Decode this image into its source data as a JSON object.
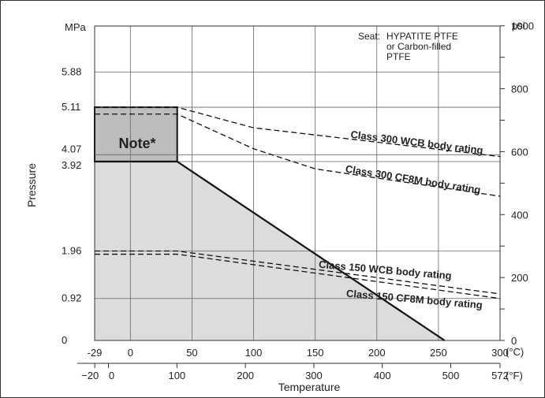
{
  "chart_data": {
    "type": "line",
    "title": "",
    "xlabel": "Temperature",
    "ylabel": "Pressure",
    "y_unit_left": "MPa",
    "y_unit_right": "psi",
    "x_unit_bottom_1": "(°C)",
    "x_unit_bottom_2": "(°F)",
    "x_range_c": [
      -29,
      300
    ],
    "y_range_mpa": [
      0,
      6.89
    ],
    "x_ticks_c": [
      "-29",
      "0",
      "50",
      "100",
      "150",
      "200",
      "250",
      "300"
    ],
    "x_ticks_f": [
      "−20",
      "0",
      "100",
      "200",
      "300",
      "400",
      "500",
      "572"
    ],
    "y_ticks_mpa": [
      "0",
      "0.92",
      "1.96",
      "3.92",
      "4.07",
      "5.11",
      "5.88"
    ],
    "y_ticks_psi": [
      "0",
      "200",
      "400",
      "600",
      "800",
      "1000"
    ],
    "grid": true,
    "seat_label": "Seat:",
    "seat_text": [
      "HYPATITE PTFE",
      "or Carbon-filled",
      "PTFE"
    ],
    "note_label": "Note*",
    "series": [
      {
        "name": "Class 300 WCB body rating",
        "style": "dashed",
        "x": [
          -29,
          38,
          100,
          300
        ],
        "y": [
          5.11,
          5.11,
          4.66,
          4.03
        ]
      },
      {
        "name": "Class 300 CF8M body rating",
        "style": "dashed",
        "x": [
          -29,
          38,
          100,
          150,
          300
        ],
        "y": [
          4.96,
          4.96,
          4.2,
          3.76,
          3.16
        ]
      },
      {
        "name": "Class 150 WCB body rating",
        "style": "dashed",
        "x": [
          -29,
          38,
          300
        ],
        "y": [
          1.96,
          1.96,
          1.02
        ]
      },
      {
        "name": "Class 150 CF8M body rating",
        "style": "dashed",
        "x": [
          -29,
          38,
          300
        ],
        "y": [
          1.89,
          1.89,
          0.92
        ]
      },
      {
        "name": "Valve rating",
        "style": "solid",
        "x": [
          -29,
          38,
          255
        ],
        "y": [
          3.92,
          3.92,
          0
        ]
      }
    ],
    "note_region": {
      "x": [
        -29,
        38
      ],
      "y": [
        3.92,
        5.11
      ]
    }
  },
  "colors": {
    "fill": "#dcdcdc",
    "note_fill": "#bdbdbd",
    "grid": "#666666",
    "line": "#111111"
  }
}
